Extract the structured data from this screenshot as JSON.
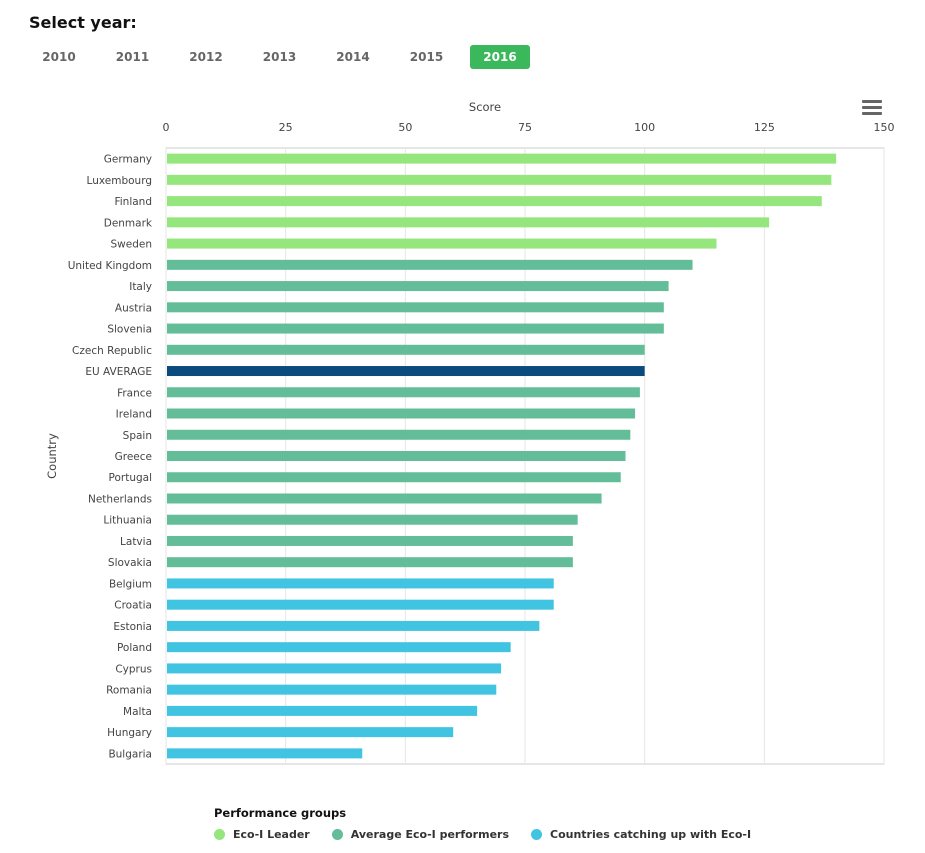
{
  "selector": {
    "title": "Select year:",
    "years": [
      "2010",
      "2011",
      "2012",
      "2013",
      "2014",
      "2015",
      "2016"
    ],
    "selected": "2016",
    "active_color": "#3cb85c"
  },
  "menu": {
    "icon": "hamburger-menu-icon"
  },
  "legend": {
    "title": "Performance groups",
    "items": [
      {
        "label": "Eco-I Leader",
        "color": "#95e67c"
      },
      {
        "label": "Average Eco-I performers",
        "color": "#62bd98"
      },
      {
        "label": "Countries catching up with Eco-I",
        "color": "#41c4e1"
      }
    ]
  },
  "chart_data": {
    "type": "bar",
    "orientation": "horizontal",
    "xlabel": "Score",
    "ylabel": "Country",
    "xlim": [
      0,
      150
    ],
    "xticks": [
      0,
      25,
      50,
      75,
      100,
      125,
      150
    ],
    "x_axis_position": "top",
    "grid": true,
    "legend_position": "bottom-left",
    "highlight_color": "#0b4a7c",
    "categories": [
      "Germany",
      "Luxembourg",
      "Finland",
      "Denmark",
      "Sweden",
      "United Kingdom",
      "Italy",
      "Austria",
      "Slovenia",
      "Czech Republic",
      "EU AVERAGE",
      "France",
      "Ireland",
      "Spain",
      "Greece",
      "Portugal",
      "Netherlands",
      "Lithuania",
      "Latvia",
      "Slovakia",
      "Belgium",
      "Croatia",
      "Estonia",
      "Poland",
      "Cyprus",
      "Romania",
      "Malta",
      "Hungary",
      "Bulgaria"
    ],
    "values": [
      140,
      139,
      137,
      126,
      115,
      110,
      105,
      104,
      104,
      100,
      100,
      99,
      98,
      97,
      96,
      95,
      91,
      86,
      85,
      85,
      81,
      81,
      78,
      72,
      70,
      69,
      65,
      60,
      41
    ],
    "groups": [
      "Eco-I Leader",
      "Eco-I Leader",
      "Eco-I Leader",
      "Eco-I Leader",
      "Eco-I Leader",
      "Average Eco-I performers",
      "Average Eco-I performers",
      "Average Eco-I performers",
      "Average Eco-I performers",
      "Average Eco-I performers",
      "EU AVERAGE",
      "Average Eco-I performers",
      "Average Eco-I performers",
      "Average Eco-I performers",
      "Average Eco-I performers",
      "Average Eco-I performers",
      "Average Eco-I performers",
      "Average Eco-I performers",
      "Average Eco-I performers",
      "Average Eco-I performers",
      "Countries catching up with Eco-I",
      "Countries catching up with Eco-I",
      "Countries catching up with Eco-I",
      "Countries catching up with Eco-I",
      "Countries catching up with Eco-I",
      "Countries catching up with Eco-I",
      "Countries catching up with Eco-I",
      "Countries catching up with Eco-I",
      "Countries catching up with Eco-I"
    ]
  }
}
